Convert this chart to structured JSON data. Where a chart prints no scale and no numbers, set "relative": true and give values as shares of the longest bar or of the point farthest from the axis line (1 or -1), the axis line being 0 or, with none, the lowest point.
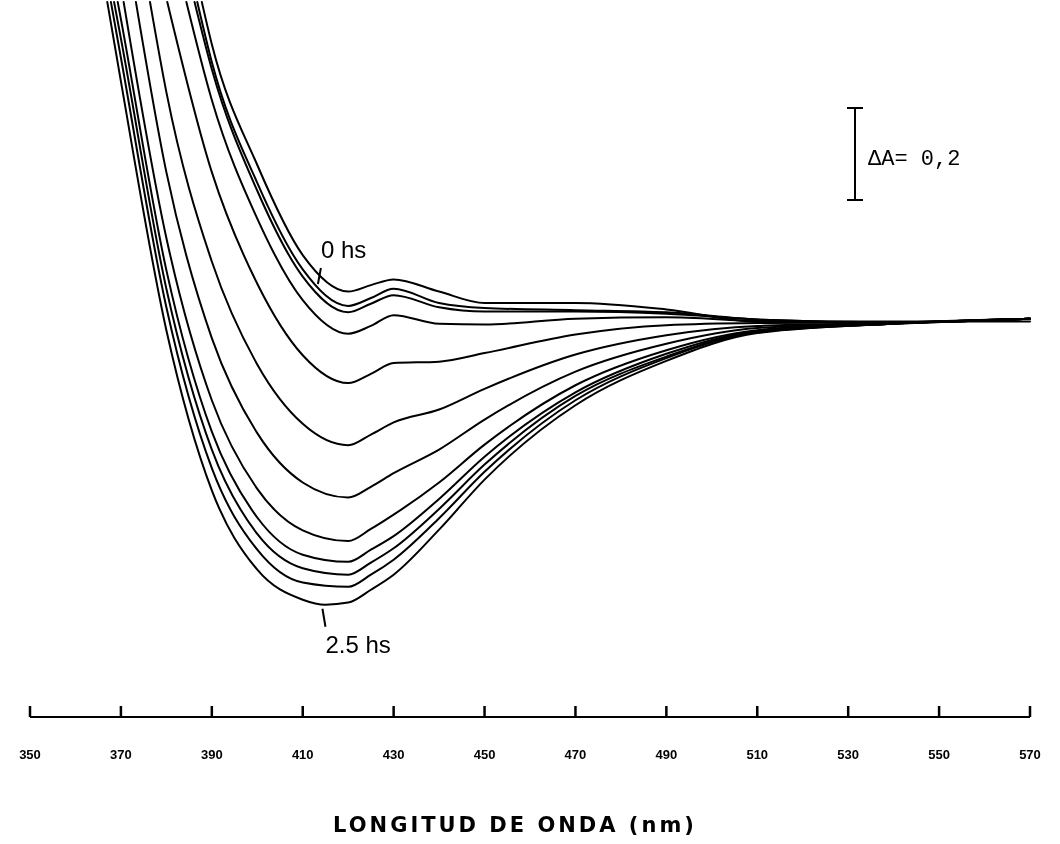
{
  "chart_data": {
    "type": "line",
    "relative": true,
    "xlabel": "LONGITUD DE ONDA (nm)",
    "xlim": [
      350,
      570
    ],
    "xticks": [
      350,
      370,
      390,
      410,
      430,
      450,
      470,
      490,
      510,
      530,
      550,
      570
    ],
    "line_style": "solid",
    "marker": "none",
    "grid": false,
    "annotations": [
      {
        "text": "0 hs",
        "x": 414,
        "y": 0.6
      },
      {
        "text": "2.5 hs",
        "x": 415,
        "y": 0.157
      },
      "ΔA= 0,2"
    ],
    "series": [
      {
        "color": "#000000",
        "x": [
          387.8,
          390,
          400,
          410,
          420,
          425,
          430,
          440,
          450,
          470,
          490,
          510,
          540,
          570
        ],
        "values": [
          1,
          0.941,
          0.772,
          0.646,
          0.595,
          0.604,
          0.612,
          0.595,
          0.579,
          0.579,
          0.57,
          0.553,
          0.553,
          0.553
        ]
      },
      {
        "color": "#000000",
        "x": [
          386.8,
          390,
          400,
          410,
          420,
          425,
          430,
          440,
          450,
          470,
          490,
          510,
          540,
          570
        ],
        "values": [
          1,
          0.916,
          0.747,
          0.626,
          0.575,
          0.586,
          0.599,
          0.579,
          0.572,
          0.569,
          0.566,
          0.556,
          0.552,
          0.557
        ]
      },
      {
        "color": "#000000",
        "x": [
          386.2,
          390,
          400,
          410,
          420,
          425,
          430,
          440,
          450,
          470,
          490,
          510,
          540,
          570
        ],
        "values": [
          1,
          0.906,
          0.736,
          0.616,
          0.566,
          0.578,
          0.59,
          0.573,
          0.567,
          0.567,
          0.564,
          0.556,
          0.552,
          0.557
        ]
      },
      {
        "color": "#000000",
        "x": [
          384.4,
          390,
          400,
          410,
          420,
          425,
          430,
          440,
          450,
          470,
          490,
          510,
          540,
          570
        ],
        "values": [
          1,
          0.863,
          0.697,
          0.583,
          0.536,
          0.547,
          0.562,
          0.55,
          0.549,
          0.557,
          0.559,
          0.554,
          0.552,
          0.557
        ]
      },
      {
        "color": "#000000",
        "x": [
          380.2,
          390,
          400,
          410,
          420,
          425,
          430,
          440,
          450,
          470,
          490,
          510,
          540,
          570
        ],
        "values": [
          1,
          0.762,
          0.606,
          0.506,
          0.467,
          0.48,
          0.495,
          0.497,
          0.509,
          0.535,
          0.548,
          0.551,
          0.552,
          0.557
        ]
      },
      {
        "color": "#000000",
        "x": [
          376.4,
          380,
          390,
          400,
          410,
          420,
          425,
          430,
          440,
          450,
          470,
          490,
          510,
          540,
          570
        ],
        "values": [
          1,
          0.874,
          0.637,
          0.493,
          0.41,
          0.38,
          0.395,
          0.412,
          0.43,
          0.459,
          0.507,
          0.534,
          0.547,
          0.551,
          0.557
        ]
      },
      {
        "color": "#000000",
        "x": [
          373.3,
          380,
          390,
          400,
          410,
          420,
          425,
          430,
          440,
          450,
          470,
          490,
          510,
          540,
          570
        ],
        "values": [
          1,
          0.762,
          0.53,
          0.397,
          0.328,
          0.307,
          0.322,
          0.341,
          0.374,
          0.416,
          0.483,
          0.522,
          0.544,
          0.551,
          0.557
        ]
      },
      {
        "color": "#000000",
        "x": [
          370.6,
          380,
          390,
          400,
          410,
          420,
          425,
          430,
          440,
          450,
          470,
          490,
          510,
          540,
          570
        ],
        "values": [
          1,
          0.67,
          0.443,
          0.319,
          0.261,
          0.246,
          0.263,
          0.283,
          0.328,
          0.381,
          0.464,
          0.513,
          0.541,
          0.551,
          0.557
        ]
      },
      {
        "color": "#000000",
        "x": [
          369.3,
          370,
          380,
          390,
          400,
          410,
          420,
          425,
          430,
          440,
          450,
          470,
          490,
          510,
          540,
          570
        ],
        "values": [
          1,
          0.976,
          0.625,
          0.399,
          0.279,
          0.227,
          0.217,
          0.234,
          0.253,
          0.305,
          0.364,
          0.454,
          0.508,
          0.54,
          0.55,
          0.557
        ]
      },
      {
        "color": "#000000",
        "x": [
          368.5,
          370,
          380,
          390,
          400,
          410,
          420,
          425,
          430,
          440,
          450,
          470,
          490,
          510,
          540,
          570
        ],
        "values": [
          1,
          0.949,
          0.599,
          0.374,
          0.256,
          0.208,
          0.199,
          0.216,
          0.236,
          0.291,
          0.353,
          0.449,
          0.504,
          0.539,
          0.55,
          0.557
        ]
      },
      {
        "color": "#000000",
        "x": [
          367.8,
          370,
          380,
          390,
          400,
          410,
          420,
          425,
          430,
          440,
          450,
          470,
          490,
          510,
          540,
          570
        ],
        "values": [
          1,
          0.922,
          0.573,
          0.348,
          0.234,
          0.188,
          0.182,
          0.199,
          0.22,
          0.278,
          0.343,
          0.443,
          0.502,
          0.538,
          0.55,
          0.557
        ]
      },
      {
        "color": "#000000",
        "x": [
          367,
          370,
          380,
          390,
          400,
          410,
          415,
          420,
          425,
          430,
          440,
          450,
          470,
          490,
          510,
          540,
          570
        ],
        "values": [
          1,
          0.889,
          0.541,
          0.317,
          0.206,
          0.164,
          0.157,
          0.16,
          0.178,
          0.199,
          0.262,
          0.332,
          0.436,
          0.498,
          0.537,
          0.55,
          0.557
        ]
      }
    ]
  }
}
